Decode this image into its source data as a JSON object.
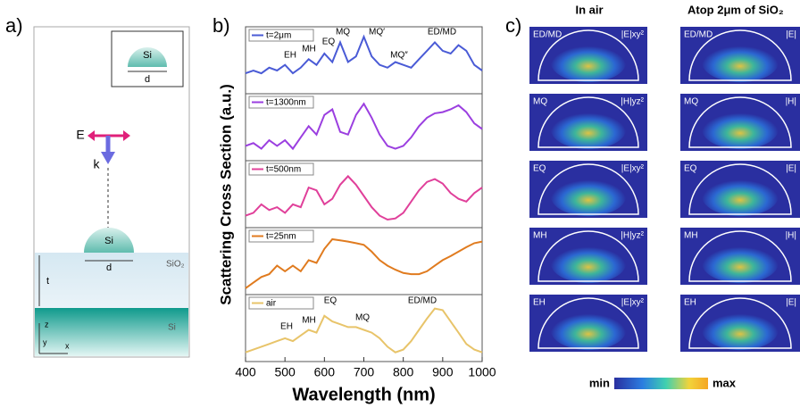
{
  "panel_labels": [
    "a)",
    "b)",
    "c)"
  ],
  "panel_a": {
    "inset_material": "Si",
    "inset_dim": "d",
    "field_e": "E",
    "field_k": "k",
    "particle": "Si",
    "particle_dim": "d",
    "layer": "SiO₂",
    "thickness": "t",
    "substrate": "Si",
    "axis_z": "z",
    "axis_y": "y",
    "axis_x": "x"
  },
  "panel_b": {
    "ylabel": "Scattering Cross Section (a.u.)"
  },
  "chart_data": [
    {
      "type": "line",
      "name": "t=2μm",
      "color": "#4a5bd6",
      "xlim": [
        400,
        1000
      ],
      "ylim": [
        0,
        1
      ],
      "x": [
        400,
        420,
        440,
        460,
        480,
        500,
        520,
        540,
        560,
        580,
        600,
        620,
        640,
        660,
        680,
        700,
        720,
        740,
        760,
        780,
        800,
        820,
        840,
        860,
        880,
        900,
        920,
        940,
        960,
        980,
        1000
      ],
      "values": [
        0.3,
        0.35,
        0.3,
        0.4,
        0.35,
        0.45,
        0.3,
        0.4,
        0.55,
        0.45,
        0.65,
        0.5,
        0.85,
        0.5,
        0.6,
        0.95,
        0.6,
        0.45,
        0.4,
        0.5,
        0.45,
        0.4,
        0.55,
        0.7,
        0.85,
        0.7,
        0.65,
        0.8,
        0.7,
        0.45,
        0.35
      ],
      "annotations": [
        "EH",
        "MH",
        "EQ",
        "MQ",
        "MQ′",
        "MQ″",
        "ED/MD"
      ]
    },
    {
      "type": "line",
      "name": "t=1300nm",
      "color": "#9b3fe0",
      "xlim": [
        400,
        1000
      ],
      "ylim": [
        0,
        1
      ],
      "x": [
        400,
        420,
        440,
        460,
        480,
        500,
        520,
        540,
        560,
        580,
        600,
        620,
        640,
        660,
        680,
        700,
        720,
        740,
        760,
        780,
        800,
        820,
        840,
        860,
        880,
        900,
        920,
        940,
        960,
        980,
        1000
      ],
      "values": [
        0.2,
        0.25,
        0.15,
        0.3,
        0.2,
        0.3,
        0.15,
        0.35,
        0.55,
        0.4,
        0.75,
        0.85,
        0.45,
        0.4,
        0.75,
        0.95,
        0.7,
        0.4,
        0.2,
        0.15,
        0.2,
        0.35,
        0.55,
        0.7,
        0.78,
        0.8,
        0.85,
        0.92,
        0.8,
        0.6,
        0.5
      ]
    },
    {
      "type": "line",
      "name": "t=500nm",
      "color": "#e0409a",
      "xlim": [
        400,
        1000
      ],
      "ylim": [
        0,
        1
      ],
      "x": [
        400,
        420,
        440,
        460,
        480,
        500,
        520,
        540,
        560,
        580,
        600,
        620,
        640,
        660,
        680,
        700,
        720,
        740,
        760,
        780,
        800,
        820,
        840,
        860,
        880,
        900,
        920,
        940,
        960,
        980,
        1000
      ],
      "values": [
        0.15,
        0.2,
        0.35,
        0.25,
        0.3,
        0.2,
        0.35,
        0.3,
        0.65,
        0.6,
        0.35,
        0.45,
        0.7,
        0.85,
        0.7,
        0.5,
        0.3,
        0.15,
        0.08,
        0.1,
        0.2,
        0.4,
        0.6,
        0.75,
        0.8,
        0.72,
        0.55,
        0.45,
        0.4,
        0.55,
        0.65
      ]
    },
    {
      "type": "line",
      "name": "t=25nm",
      "color": "#e07b1f",
      "xlim": [
        400,
        1000
      ],
      "ylim": [
        0,
        1
      ],
      "x": [
        400,
        420,
        440,
        460,
        480,
        500,
        520,
        540,
        560,
        580,
        600,
        620,
        640,
        660,
        680,
        700,
        720,
        740,
        760,
        780,
        800,
        820,
        840,
        860,
        880,
        900,
        920,
        940,
        960,
        980,
        1000
      ],
      "values": [
        0.05,
        0.15,
        0.25,
        0.3,
        0.45,
        0.35,
        0.45,
        0.35,
        0.55,
        0.5,
        0.75,
        0.92,
        0.9,
        0.88,
        0.85,
        0.82,
        0.7,
        0.55,
        0.45,
        0.38,
        0.32,
        0.3,
        0.3,
        0.35,
        0.45,
        0.55,
        0.62,
        0.7,
        0.78,
        0.85,
        0.88
      ]
    },
    {
      "type": "line",
      "name": "air",
      "color": "#e8c46a",
      "xlim": [
        400,
        1000
      ],
      "ylim": [
        0,
        1
      ],
      "x": [
        400,
        420,
        440,
        460,
        480,
        500,
        520,
        540,
        560,
        580,
        600,
        620,
        640,
        660,
        680,
        700,
        720,
        740,
        760,
        780,
        800,
        820,
        840,
        860,
        880,
        900,
        920,
        940,
        960,
        980,
        1000
      ],
      "values": [
        0.1,
        0.15,
        0.2,
        0.25,
        0.3,
        0.35,
        0.3,
        0.4,
        0.5,
        0.45,
        0.75,
        0.65,
        0.6,
        0.55,
        0.55,
        0.5,
        0.45,
        0.35,
        0.2,
        0.1,
        0.15,
        0.3,
        0.5,
        0.7,
        0.88,
        0.85,
        0.65,
        0.45,
        0.25,
        0.15,
        0.1
      ],
      "annotations": [
        "EH",
        "MH",
        "EQ",
        "MQ",
        "ED/MD"
      ],
      "xticks": [
        400,
        500,
        600,
        700,
        800,
        900,
        1000
      ],
      "xlabel": "Wavelength (nm)"
    }
  ],
  "panel_c": {
    "headers": [
      "In air",
      "Atop 2μm of SiO₂"
    ],
    "rows": [
      {
        "mode": "ED/MD",
        "field": "|E|xy²",
        "mode_right": "ED/MD",
        "field_right": "|E|"
      },
      {
        "mode": "MQ",
        "field": "|H|yz²",
        "mode_right": "MQ",
        "field_right": "|H|"
      },
      {
        "mode": "EQ",
        "field": "|E|xy²",
        "mode_right": "EQ",
        "field_right": "|E|"
      },
      {
        "mode": "MH",
        "field": "|H|yz²",
        "mode_right": "MH",
        "field_right": "|H|"
      },
      {
        "mode": "EH",
        "field": "|E|xy²",
        "mode_right": "EH",
        "field_right": "|E|"
      }
    ],
    "colorbar_min": "min",
    "colorbar_max": "max"
  }
}
